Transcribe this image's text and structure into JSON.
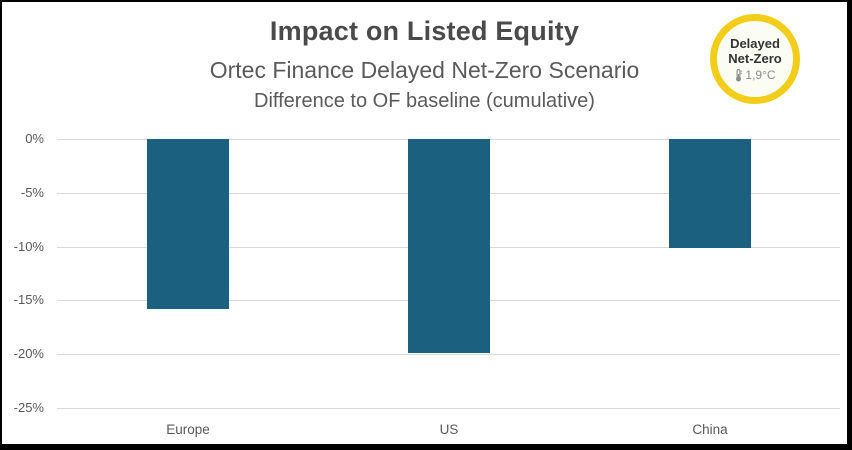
{
  "header": {
    "title": "Impact on Listed Equity",
    "subtitle": "Ortec Finance Delayed Net-Zero Scenario",
    "subtitle2": "Difference to OF baseline (cumulative)"
  },
  "badge": {
    "line1": "Delayed",
    "line2": "Net-Zero",
    "temperature": "1,9°C",
    "icon": "thermometer-icon",
    "border_color": "#F2CE1B",
    "fill_color": "#FBFCF4",
    "text_color": "#333332",
    "temp_color": "#8c8c8c"
  },
  "chart_data": {
    "type": "bar",
    "title": "Impact on Listed Equity",
    "subtitle": "Ortec Finance Delayed Net-Zero Scenario",
    "note": "Difference to OF baseline (cumulative)",
    "categories": [
      "Europe",
      "US",
      "China"
    ],
    "values": [
      -15.8,
      -19.9,
      -10.1
    ],
    "xlabel": "",
    "ylabel": "",
    "ylim": [
      -25,
      0
    ],
    "ytick_values": [
      0,
      -5,
      -10,
      -15,
      -20,
      -25
    ],
    "ytick_labels": [
      "0%",
      "-5%",
      "-10%",
      "-15%",
      "-20%",
      "-25%"
    ],
    "grid": true,
    "legend": false,
    "bar_color": "#1B617F",
    "gridline_color": "#D9D9D9",
    "axis_label_color": "#595959"
  }
}
